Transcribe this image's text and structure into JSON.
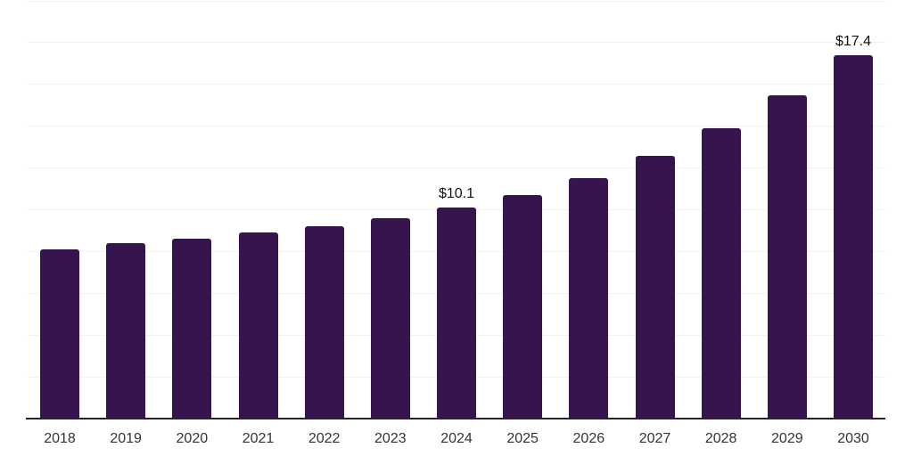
{
  "chart_data": {
    "type": "bar",
    "categories": [
      "2018",
      "2019",
      "2020",
      "2021",
      "2022",
      "2023",
      "2024",
      "2025",
      "2026",
      "2027",
      "2028",
      "2029",
      "2030"
    ],
    "values": [
      8.1,
      8.4,
      8.6,
      8.9,
      9.2,
      9.6,
      10.1,
      10.7,
      11.5,
      12.6,
      13.9,
      15.5,
      17.4
    ],
    "labeled_points": [
      {
        "category": "2024",
        "label": "$10.1"
      },
      {
        "category": "2030",
        "label": "$17.4"
      }
    ],
    "ylim": [
      0,
      20
    ],
    "grid": true,
    "gridline_step": 2,
    "legend": "none",
    "colors": {
      "bar": "#36154e",
      "axis": "#262626",
      "gridline": "#f2f2f2",
      "value_label": "#111111",
      "tick_label": "#333333",
      "background": "#ffffff"
    }
  }
}
